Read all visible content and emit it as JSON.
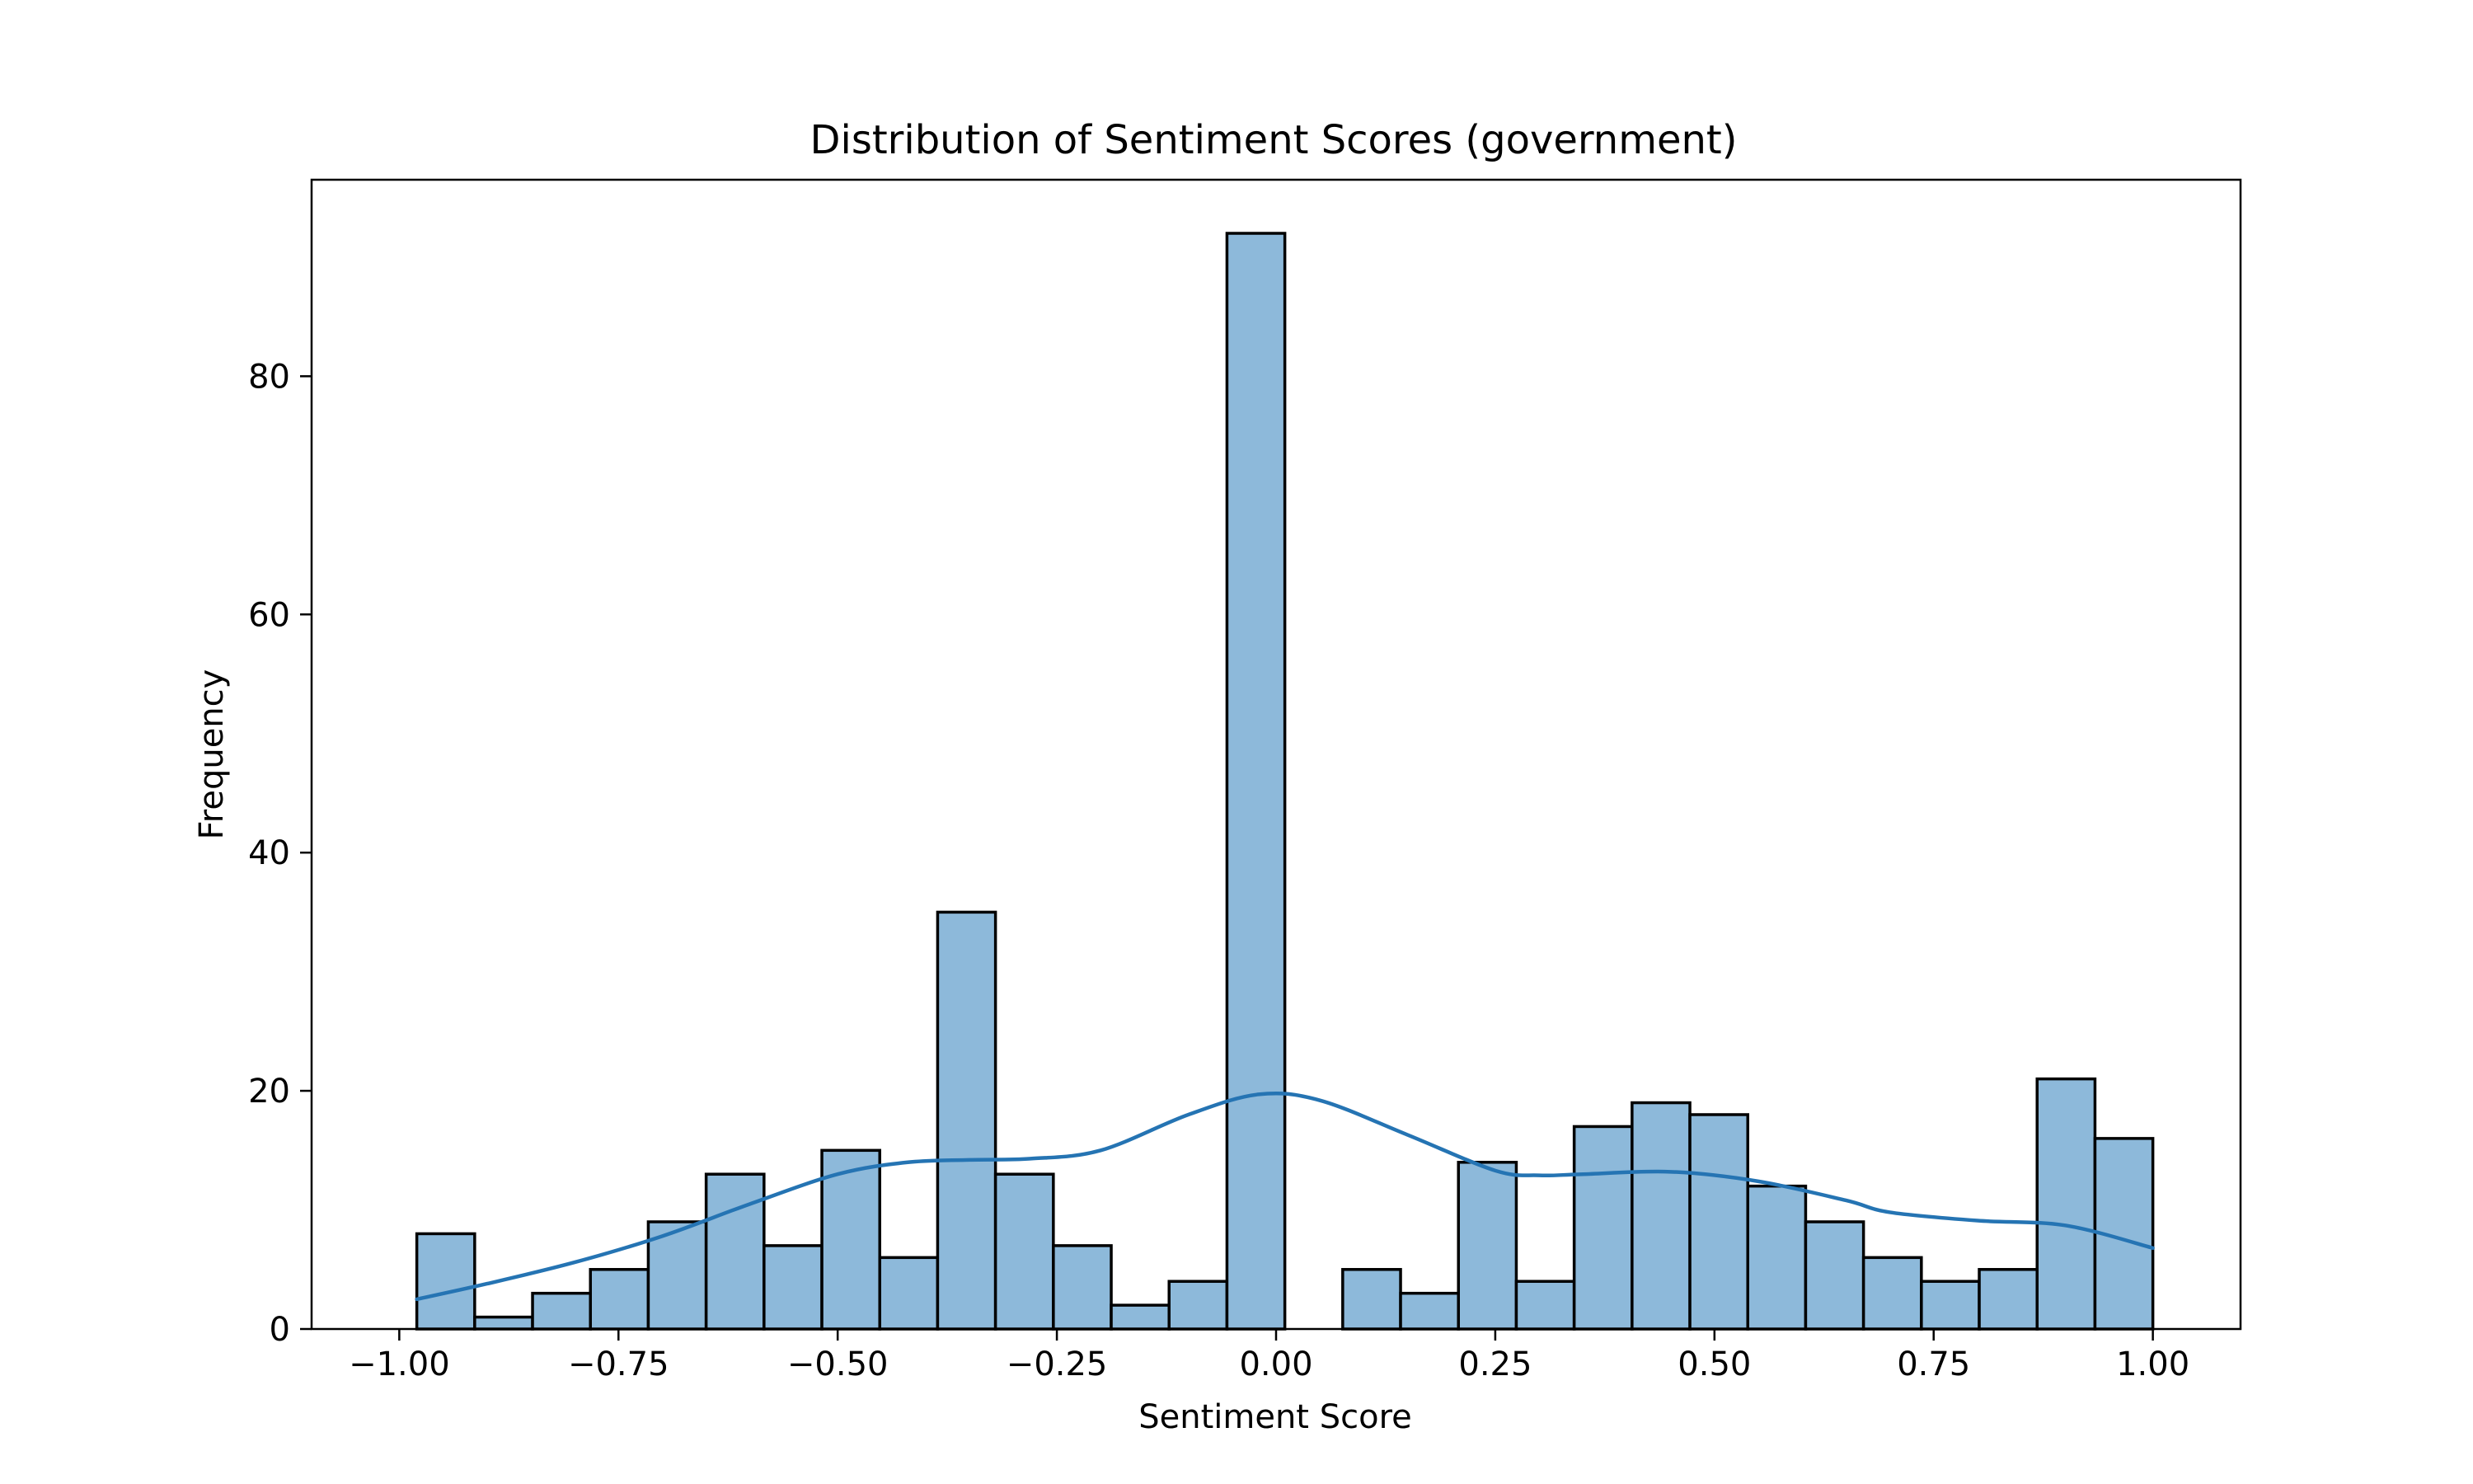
{
  "chart_data": {
    "type": "bar",
    "title": "Distribution of Sentiment Scores (government)",
    "xlabel": "Sentiment Score",
    "ylabel": "Frequency",
    "xlim": [
      -1.1,
      1.1
    ],
    "ylim": [
      0,
      96.5
    ],
    "x_ticks": [
      -1.0,
      -0.75,
      -0.5,
      -0.25,
      0.0,
      0.25,
      0.5,
      0.75,
      1.0
    ],
    "x_tick_labels": [
      "−1.00",
      "−0.75",
      "−0.50",
      "−0.25",
      "0.00",
      "0.25",
      "0.50",
      "0.75",
      "1.00"
    ],
    "y_ticks": [
      0,
      20,
      40,
      60,
      80
    ],
    "y_tick_labels": [
      "0",
      "20",
      "40",
      "60",
      "80"
    ],
    "grid": false,
    "bin_range": [
      -0.98,
      1.0
    ],
    "bins": 30,
    "bin_width": 0.066,
    "counts": [
      8,
      1,
      3,
      5,
      9,
      13,
      7,
      15,
      6,
      35,
      13,
      7,
      2,
      4,
      92,
      0,
      5,
      3,
      14,
      4,
      17,
      19,
      18,
      12,
      9,
      6,
      4,
      5,
      21,
      16
    ],
    "kde": {
      "x": [
        -0.98,
        -0.9,
        -0.8,
        -0.7,
        -0.6,
        -0.5,
        -0.42,
        -0.35,
        -0.28,
        -0.2,
        -0.1,
        -0.02,
        0.05,
        0.15,
        0.25,
        0.3,
        0.35,
        0.45,
        0.55,
        0.65,
        0.7,
        0.8,
        0.9,
        1.0
      ],
      "y": [
        2.5,
        3.8,
        5.6,
        7.8,
        10.5,
        13.0,
        14.0,
        14.2,
        14.3,
        15.0,
        18.0,
        19.7,
        19.2,
        16.3,
        13.3,
        12.9,
        13.0,
        13.2,
        12.4,
        10.8,
        9.8,
        9.1,
        8.7,
        6.8
      ]
    },
    "colors": {
      "bar_fill": "#8db9da",
      "bar_edge": "#000000",
      "kde_line": "#2574b3"
    }
  }
}
